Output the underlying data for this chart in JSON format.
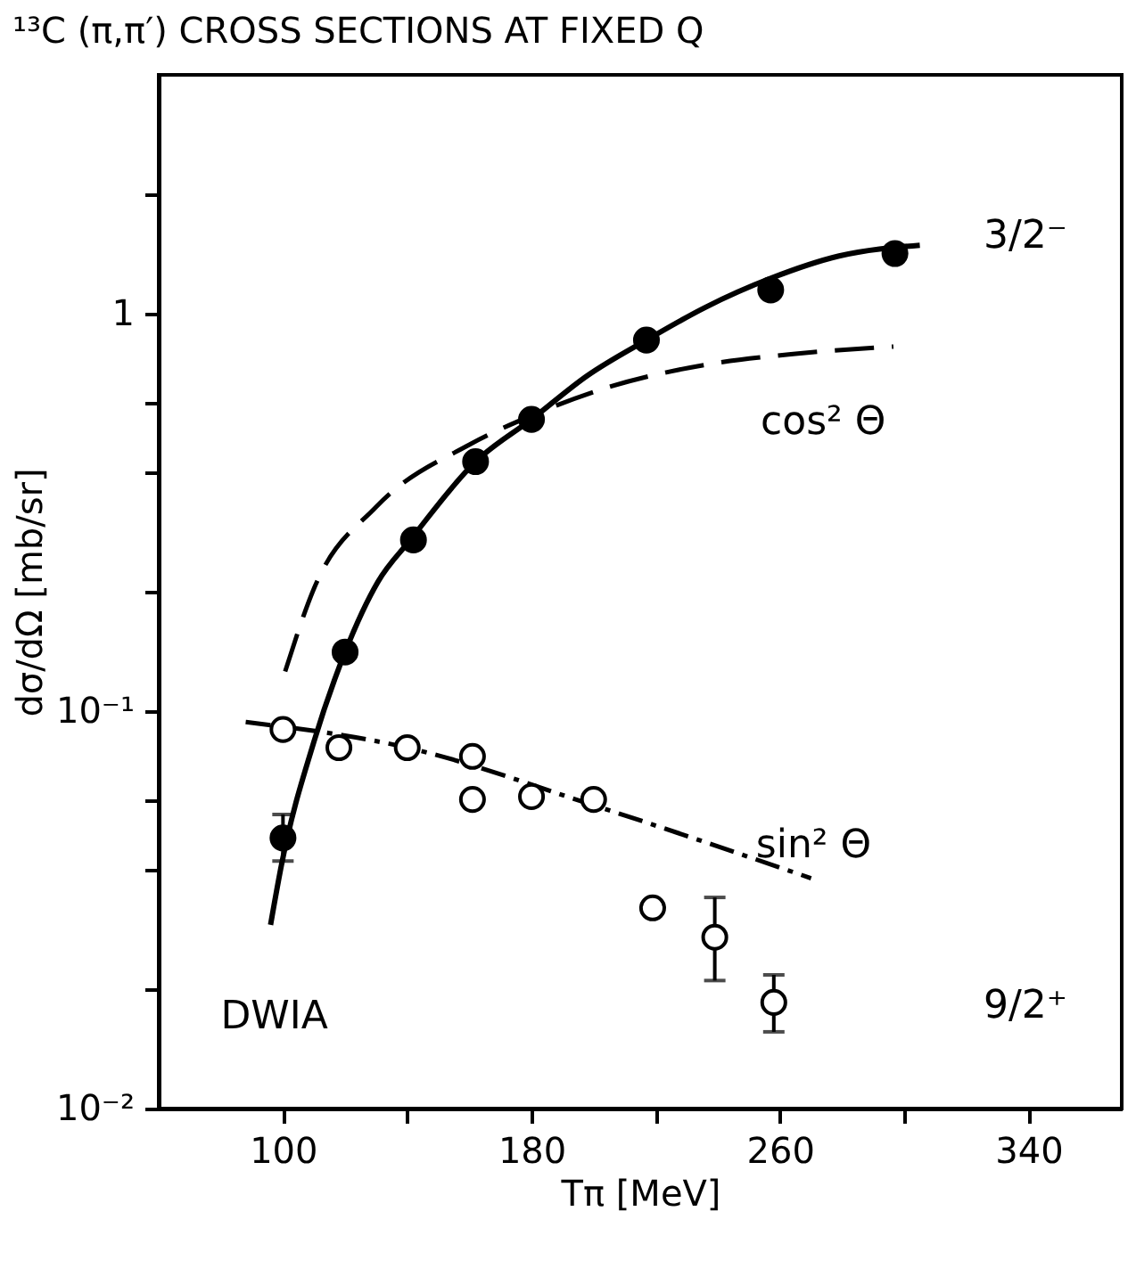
{
  "chart_data": {
    "type": "scatter",
    "title": "¹³C (π,π′) CROSS SECTIONS AT FIXED Q",
    "xlabel": "Tπ [MeV]",
    "ylabel": "dσ/dΩ [mb/sr]",
    "xlim": [
      60,
      370
    ],
    "ylim": [
      0.01,
      4
    ],
    "log": "y",
    "grid": false,
    "xticks": [
      100,
      {
        "value": 140,
        "label": null
      },
      180,
      {
        "value": 220,
        "label": null
      },
      260,
      {
        "value": 300,
        "label": null
      },
      340
    ],
    "yticks": [
      {
        "value": 0.01,
        "label": "10⁻²"
      },
      {
        "value": 0.02,
        "label": null
      },
      {
        "value": 0.04,
        "label": null
      },
      {
        "value": 0.06,
        "label": null
      },
      {
        "value": 0.1,
        "label": "10⁻¹"
      },
      {
        "value": 0.2,
        "label": null
      },
      {
        "value": 0.4,
        "label": null
      },
      {
        "value": 0.6,
        "label": null
      },
      1,
      {
        "value": 2,
        "label": null
      }
    ],
    "series": [
      {
        "type": "line",
        "color": "#000000",
        "line_style": "solid",
        "x": [
          96,
          99.5,
          110,
          120,
          130.6,
          141,
          162,
          180,
          198,
          217,
          236,
          257,
          279,
          305
        ],
        "values": [
          0.029,
          0.041,
          0.084,
          0.141,
          0.212,
          0.27,
          0.425,
          0.543,
          0.7,
          0.86,
          1.04,
          1.23,
          1.4,
          1.49
        ]
      },
      {
        "type": "line",
        "color": "#000000",
        "line_style": "dashed",
        "x": [
          100.7,
          110,
          130,
          160,
          180,
          203,
          236,
          265,
          296.5
        ],
        "values": [
          0.126,
          0.204,
          0.327,
          0.469,
          0.555,
          0.648,
          0.745,
          0.794,
          0.828
        ]
      },
      {
        "type": "line",
        "color": "#000000",
        "line_style": "dashdot",
        "x": [
          88,
          140,
          200,
          270
        ],
        "values": [
          0.094,
          0.081,
          0.058,
          0.038
        ]
      },
      {
        "color": "#000000",
        "marker": "circle",
        "x": [
          100,
          120,
          142,
          162,
          180,
          217,
          257,
          297
        ],
        "values": [
          0.048,
          0.141,
          0.27,
          0.425,
          0.543,
          0.86,
          1.15,
          1.42
        ],
        "errors": [
          [
            0.042,
            0.055
          ],
          null,
          null,
          null,
          null,
          null,
          null,
          null
        ]
      },
      {
        "color": "#000000",
        "marker": "open_circle",
        "x": [
          100,
          118,
          140,
          161,
          161,
          180,
          200,
          219,
          239,
          258
        ],
        "values": [
          0.09,
          0.081,
          0.081,
          0.077,
          0.06,
          0.061,
          0.06,
          0.032,
          0.027,
          0.0185
        ],
        "errors": [
          null,
          null,
          null,
          null,
          null,
          null,
          null,
          null,
          [
            0.021,
            0.034
          ],
          [
            0.0156,
            0.0217
          ]
        ]
      }
    ],
    "annotations": [
      "cos² Θ",
      "sin² Θ",
      "DWIA",
      "3/2⁻",
      "9/2⁺"
    ]
  }
}
